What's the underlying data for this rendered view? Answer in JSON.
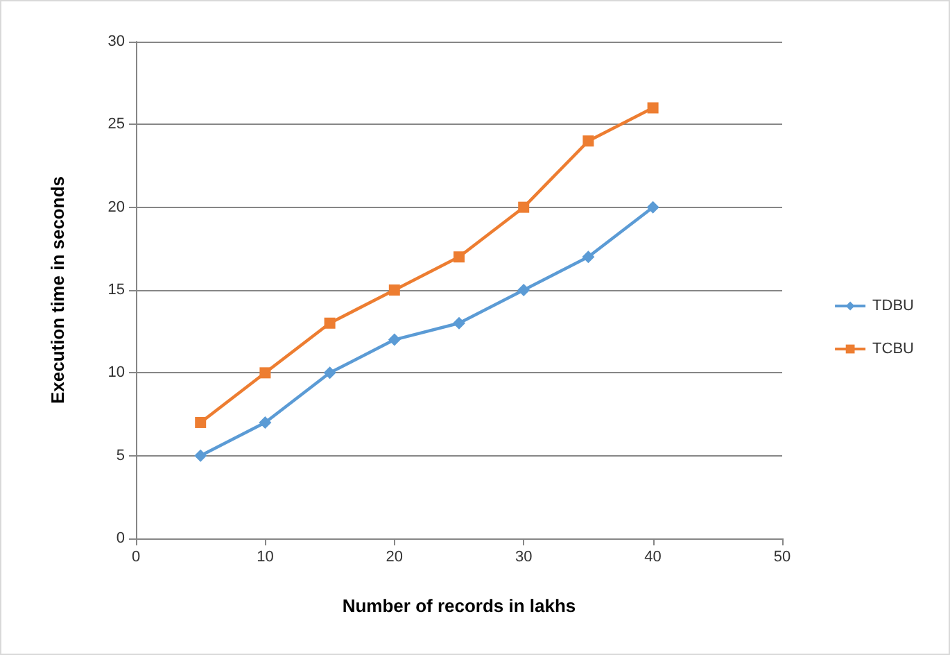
{
  "chart_data": {
    "type": "line",
    "xlabel": "Number of records in lakhs",
    "ylabel": "Execution time in seconds",
    "xlim": [
      0,
      50
    ],
    "xticks": [
      0,
      10,
      20,
      30,
      40,
      50
    ],
    "ylim": [
      0,
      30
    ],
    "yticks": [
      0,
      5,
      10,
      15,
      20,
      25,
      30
    ],
    "grid": "y",
    "legend": "right",
    "line_style": "solid",
    "series": [
      {
        "name": "TDBU",
        "color": "#5b9bd5",
        "marker": "diamond",
        "x": [
          5,
          10,
          15,
          20,
          25,
          30,
          35,
          40
        ],
        "values": [
          5,
          7,
          10,
          12,
          13,
          15,
          17,
          20
        ]
      },
      {
        "name": "TCBU",
        "color": "#ed7d31",
        "marker": "square",
        "x": [
          5,
          10,
          15,
          20,
          25,
          30,
          35,
          40
        ],
        "values": [
          7,
          10,
          13,
          15,
          17,
          20,
          24,
          26
        ]
      }
    ]
  }
}
